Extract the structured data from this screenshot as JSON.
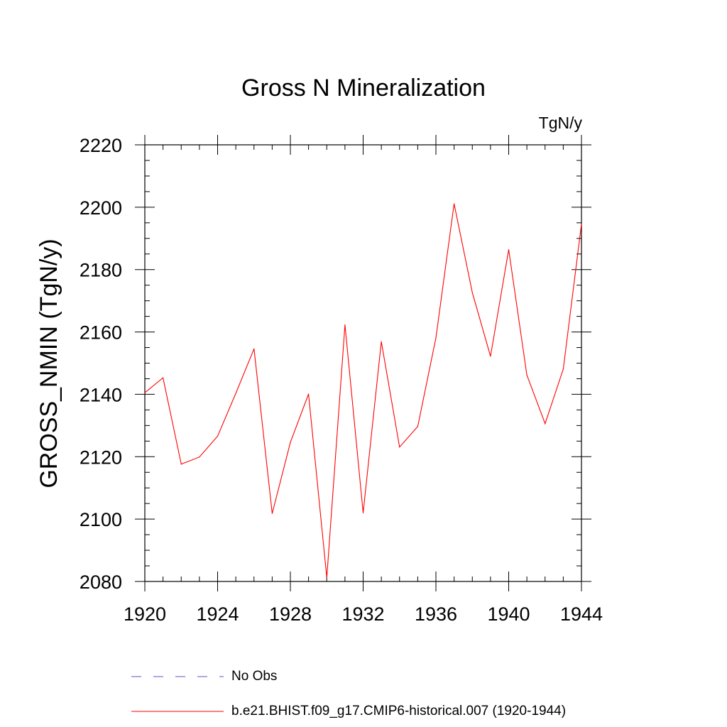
{
  "chart_data": {
    "type": "line",
    "title": "Gross N Mineralization",
    "units": "TgN/y",
    "ylabel": "GROSS_NMIN  (TgN/y)",
    "xlabel": "",
    "xlim": [
      1920,
      1944
    ],
    "ylim": [
      2080,
      2220
    ],
    "x_major_ticks": [
      1920,
      1924,
      1928,
      1932,
      1936,
      1940,
      1944
    ],
    "x_minor_step": 1,
    "y_major_ticks": [
      2080,
      2100,
      2120,
      2140,
      2160,
      2180,
      2200,
      2220
    ],
    "y_minor_step": 5,
    "grid": false,
    "series": [
      {
        "name": "b.e21.BHIST.f09_g17.CMIP6-historical.007 (1920-1944)",
        "color": "#ff0000",
        "style": "solid",
        "x": [
          1920,
          1921,
          1922,
          1923,
          1924,
          1925,
          1926,
          1927,
          1928,
          1929,
          1930,
          1931,
          1932,
          1933,
          1934,
          1935,
          1936,
          1937,
          1938,
          1939,
          1940,
          1941,
          1942,
          1943,
          1944
        ],
        "values": [
          2140.5,
          2145.3,
          2117.6,
          2119.9,
          2126.6,
          2140.3,
          2154.6,
          2101.8,
          2124.6,
          2140.1,
          2081.2,
          2162.3,
          2102.0,
          2156.9,
          2123.1,
          2129.7,
          2158.1,
          2201.1,
          2172.6,
          2152.2,
          2186.4,
          2146.2,
          2130.6,
          2148.1,
          2194.6
        ]
      }
    ],
    "legend": [
      {
        "label": "No Obs",
        "color": "#5555cc",
        "style": "dashed"
      },
      {
        "label": "b.e21.BHIST.f09_g17.CMIP6-historical.007 (1920-1944)",
        "color": "#ff0000",
        "style": "solid"
      }
    ]
  }
}
